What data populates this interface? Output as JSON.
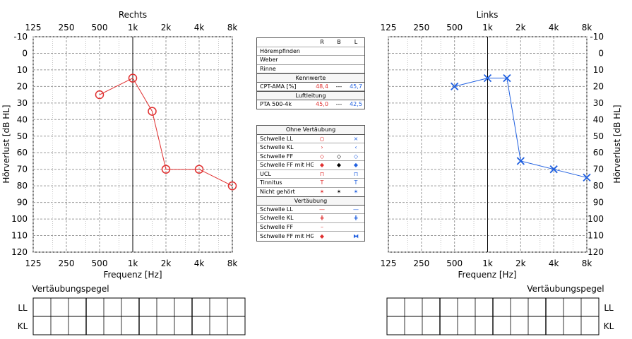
{
  "chart_data": [
    {
      "type": "line",
      "title": "Rechts",
      "xlabel": "Frequenz [Hz]",
      "ylabel": "Hörverlust [dB HL]",
      "x_ticks": [
        "125",
        "250",
        "500",
        "1k",
        "2k",
        "4k",
        "8k"
      ],
      "y_ticks": [
        "-10",
        "0",
        "10",
        "20",
        "30",
        "40",
        "50",
        "60",
        "70",
        "80",
        "90",
        "100",
        "110",
        "120"
      ],
      "ylim": [
        -10,
        120
      ],
      "y_inverted": true,
      "x_scale": "log",
      "grid": true,
      "series": [
        {
          "marker": "circle",
          "color": "#e03030",
          "points": [
            {
              "x": 500,
              "y": 25
            },
            {
              "x": 1000,
              "y": 15
            },
            {
              "x": 1500,
              "y": 35
            },
            {
              "x": 2000,
              "y": 70
            },
            {
              "x": 4000,
              "y": 70
            },
            {
              "x": 8000,
              "y": 80
            }
          ]
        }
      ],
      "masking_title": "Vertäubungspegel",
      "masking_rows": [
        "LL",
        "KL"
      ]
    },
    {
      "type": "line",
      "title": "Links",
      "xlabel": "Frequenz [Hz]",
      "ylabel": "Hörverlust [dB HL]",
      "x_ticks": [
        "125",
        "250",
        "500",
        "1k",
        "2k",
        "4k",
        "8k"
      ],
      "y_ticks": [
        "-10",
        "0",
        "10",
        "20",
        "30",
        "40",
        "50",
        "60",
        "70",
        "80",
        "90",
        "100",
        "110",
        "120"
      ],
      "ylim": [
        -10,
        120
      ],
      "y_inverted": true,
      "x_scale": "log",
      "grid": true,
      "series": [
        {
          "marker": "x",
          "color": "#2060e0",
          "points": [
            {
              "x": 500,
              "y": 20
            },
            {
              "x": 1000,
              "y": 15
            },
            {
              "x": 1500,
              "y": 15
            },
            {
              "x": 2000,
              "y": 65
            },
            {
              "x": 4000,
              "y": 70
            },
            {
              "x": 8000,
              "y": 75
            }
          ]
        }
      ],
      "masking_title": "Vertäubungspegel",
      "masking_rows": [
        "LL",
        "KL"
      ]
    }
  ],
  "legend_top": {
    "cols": [
      "R",
      "B",
      "L"
    ],
    "rows1": [
      "Hörempfinden",
      "Weber",
      "Rinne"
    ],
    "kennwerte_title": "Kennwerte",
    "cpt": {
      "label": "CPT-AMA [%]",
      "r": "48,4",
      "b": "---",
      "l": "45,7"
    },
    "luftleitung_title": "Luftleitung",
    "pta": {
      "label": "PTA  500-4k",
      "r": "45,0",
      "b": "---",
      "l": "42,5"
    }
  },
  "legend_bottom": {
    "ohne_title": "Ohne Vertäubung",
    "ohne_rows": [
      {
        "label": "Schwelle LL",
        "r": "○",
        "b": "",
        "l": "×"
      },
      {
        "label": "Schwelle KL",
        "r": "›",
        "b": "",
        "l": "‹"
      },
      {
        "label": "Schwelle FF",
        "r": "◇",
        "b": "◇",
        "l": "◇"
      },
      {
        "label": "Schwelle FF mit HG",
        "r": "◆",
        "b": "◆",
        "l": "◆"
      },
      {
        "label": "UCL",
        "r": "⊓",
        "b": "",
        "l": "⊓"
      },
      {
        "label": "Tinnitus",
        "r": "T",
        "b": "",
        "l": "T"
      },
      {
        "label": "Nicht gehört",
        "r": "✶",
        "b": "✶",
        "l": "✶"
      }
    ],
    "mit_title": "Vertäubung",
    "mit_rows": [
      {
        "label": "Schwelle LL",
        "r": "—",
        "b": "",
        "l": "—"
      },
      {
        "label": "Schwelle KL",
        "r": "⋕",
        "b": "",
        "l": "⋕"
      },
      {
        "label": "Schwelle FF",
        "r": "–",
        "b": "",
        "l": ""
      },
      {
        "label": "Schwelle FF mit HG",
        "r": "◆",
        "b": "",
        "l": "⧓"
      }
    ]
  },
  "colors": {
    "right": "#e03030",
    "left": "#2060e0",
    "grid": "#9a9a9a"
  }
}
